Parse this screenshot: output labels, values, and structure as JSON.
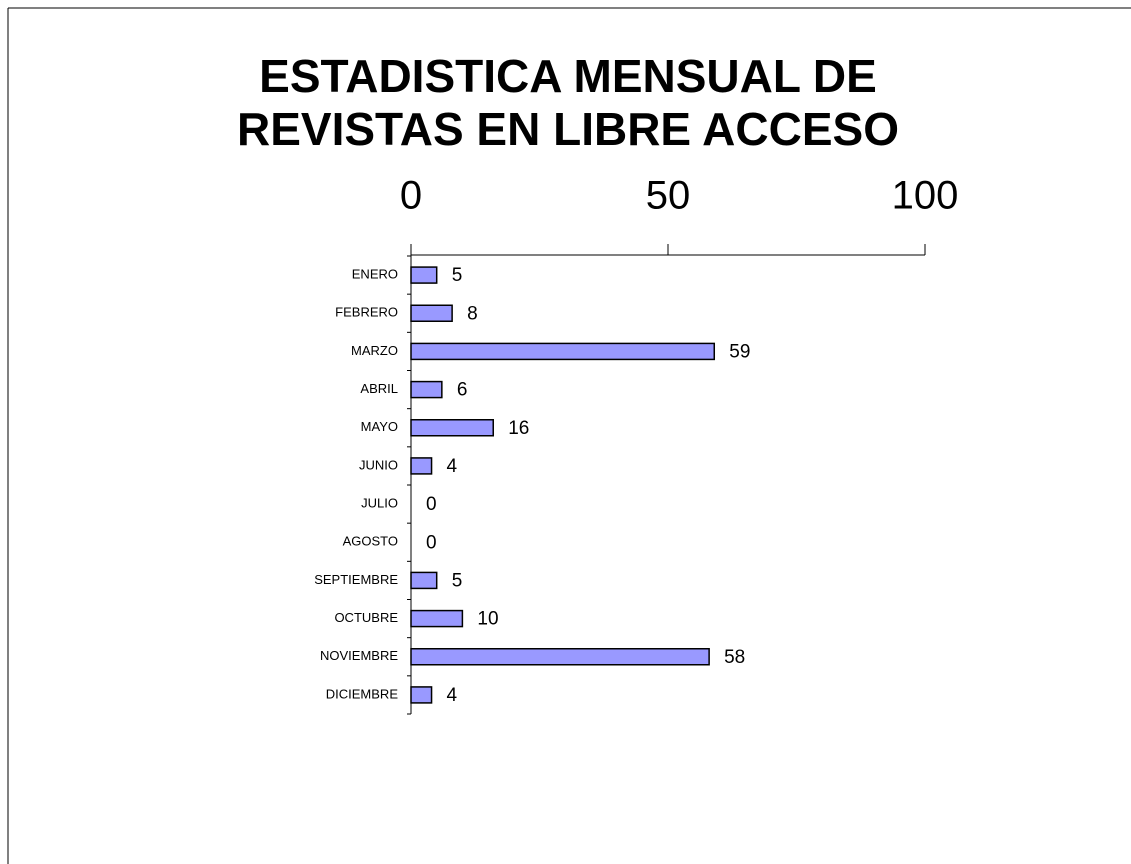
{
  "chart_data": {
    "type": "barh",
    "title": [
      "ESTADISTICA MENSUAL DE",
      "REVISTAS EN LIBRE ACCESO"
    ],
    "categories": [
      "ENERO",
      "FEBRERO",
      "MARZO",
      "ABRIL",
      "MAYO",
      "JUNIO",
      "JULIO",
      "AGOSTO",
      "SEPTIEMBRE",
      "OCTUBRE",
      "NOVIEMBRE",
      "DICIEMBRE"
    ],
    "values": [
      5,
      8,
      59,
      6,
      16,
      4,
      0,
      0,
      5,
      10,
      58,
      4
    ],
    "color": "#9999ff",
    "xlim": [
      0,
      100
    ],
    "xticks": [
      0,
      50,
      100
    ],
    "grid": false
  }
}
